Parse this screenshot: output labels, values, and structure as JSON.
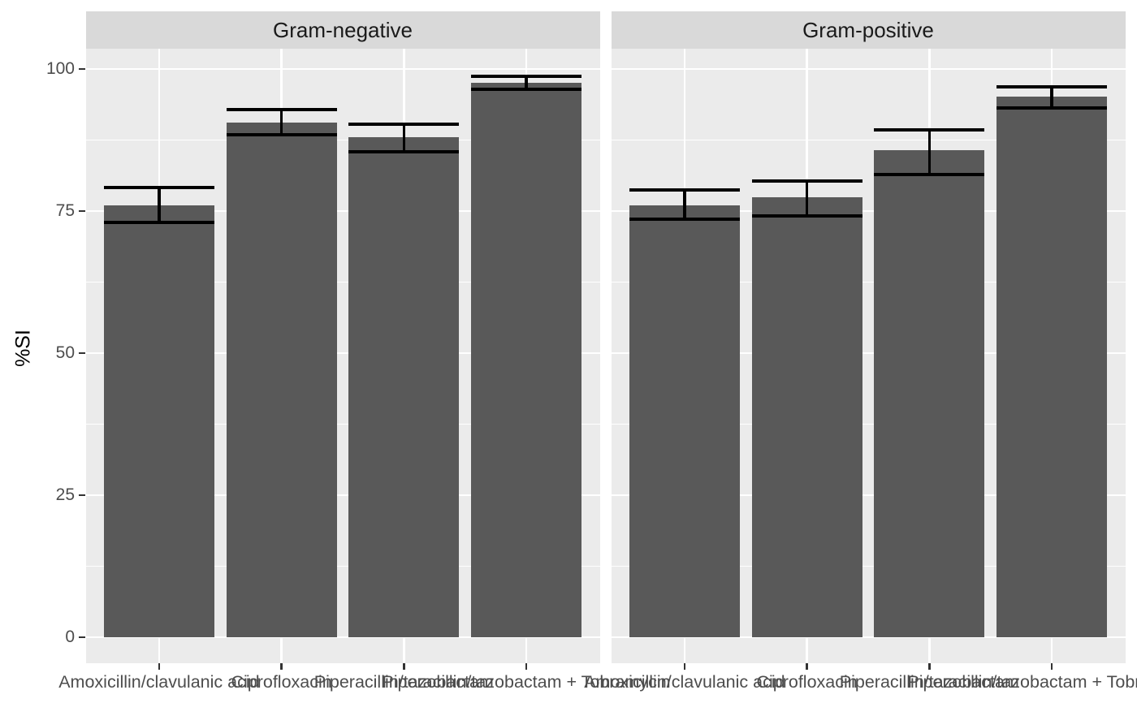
{
  "chart_data": {
    "type": "bar",
    "faceted": true,
    "facet_labels": [
      "Gram-negative",
      "Gram-positive"
    ],
    "categories": [
      "Amoxicillin/clavulanic acid",
      "Ciprofloxacin",
      "Piperacillin/tazobactam",
      "Piperacillin/tazobactam + Tobramycin"
    ],
    "series": [
      {
        "name": "Gram-negative",
        "values": [
          76.0,
          90.6,
          88.0,
          97.6
        ],
        "error_low": [
          73.0,
          88.4,
          85.4,
          96.5
        ],
        "error_high": [
          79.1,
          92.9,
          90.3,
          98.7
        ]
      },
      {
        "name": "Gram-positive",
        "values": [
          76.0,
          77.4,
          85.7,
          95.1
        ],
        "error_low": [
          73.6,
          74.1,
          81.5,
          93.2
        ],
        "error_high": [
          78.7,
          80.3,
          89.3,
          96.8
        ]
      }
    ],
    "xlabel": "",
    "ylabel": "%SI",
    "ylim": [
      0,
      103.6
    ],
    "yticks": [
      0,
      25,
      50,
      75,
      100
    ],
    "ytick_labels": [
      "0",
      "25",
      "50",
      "75",
      "100"
    ],
    "minor_gridlines": [
      12.5,
      37.5,
      62.5,
      87.5
    ],
    "grid": true,
    "legend": "none",
    "colors": {
      "bar_fill": "#595959",
      "panel_bg": "#EBEBEB",
      "strip_bg": "#D9D9D9",
      "grid_color": "#FFFFFF",
      "error_color": "#000000",
      "axis_text": "#4D4D4D",
      "strip_text": "#1A1A1A",
      "tick_color": "#333333",
      "axis_title_color": "#000000"
    }
  }
}
